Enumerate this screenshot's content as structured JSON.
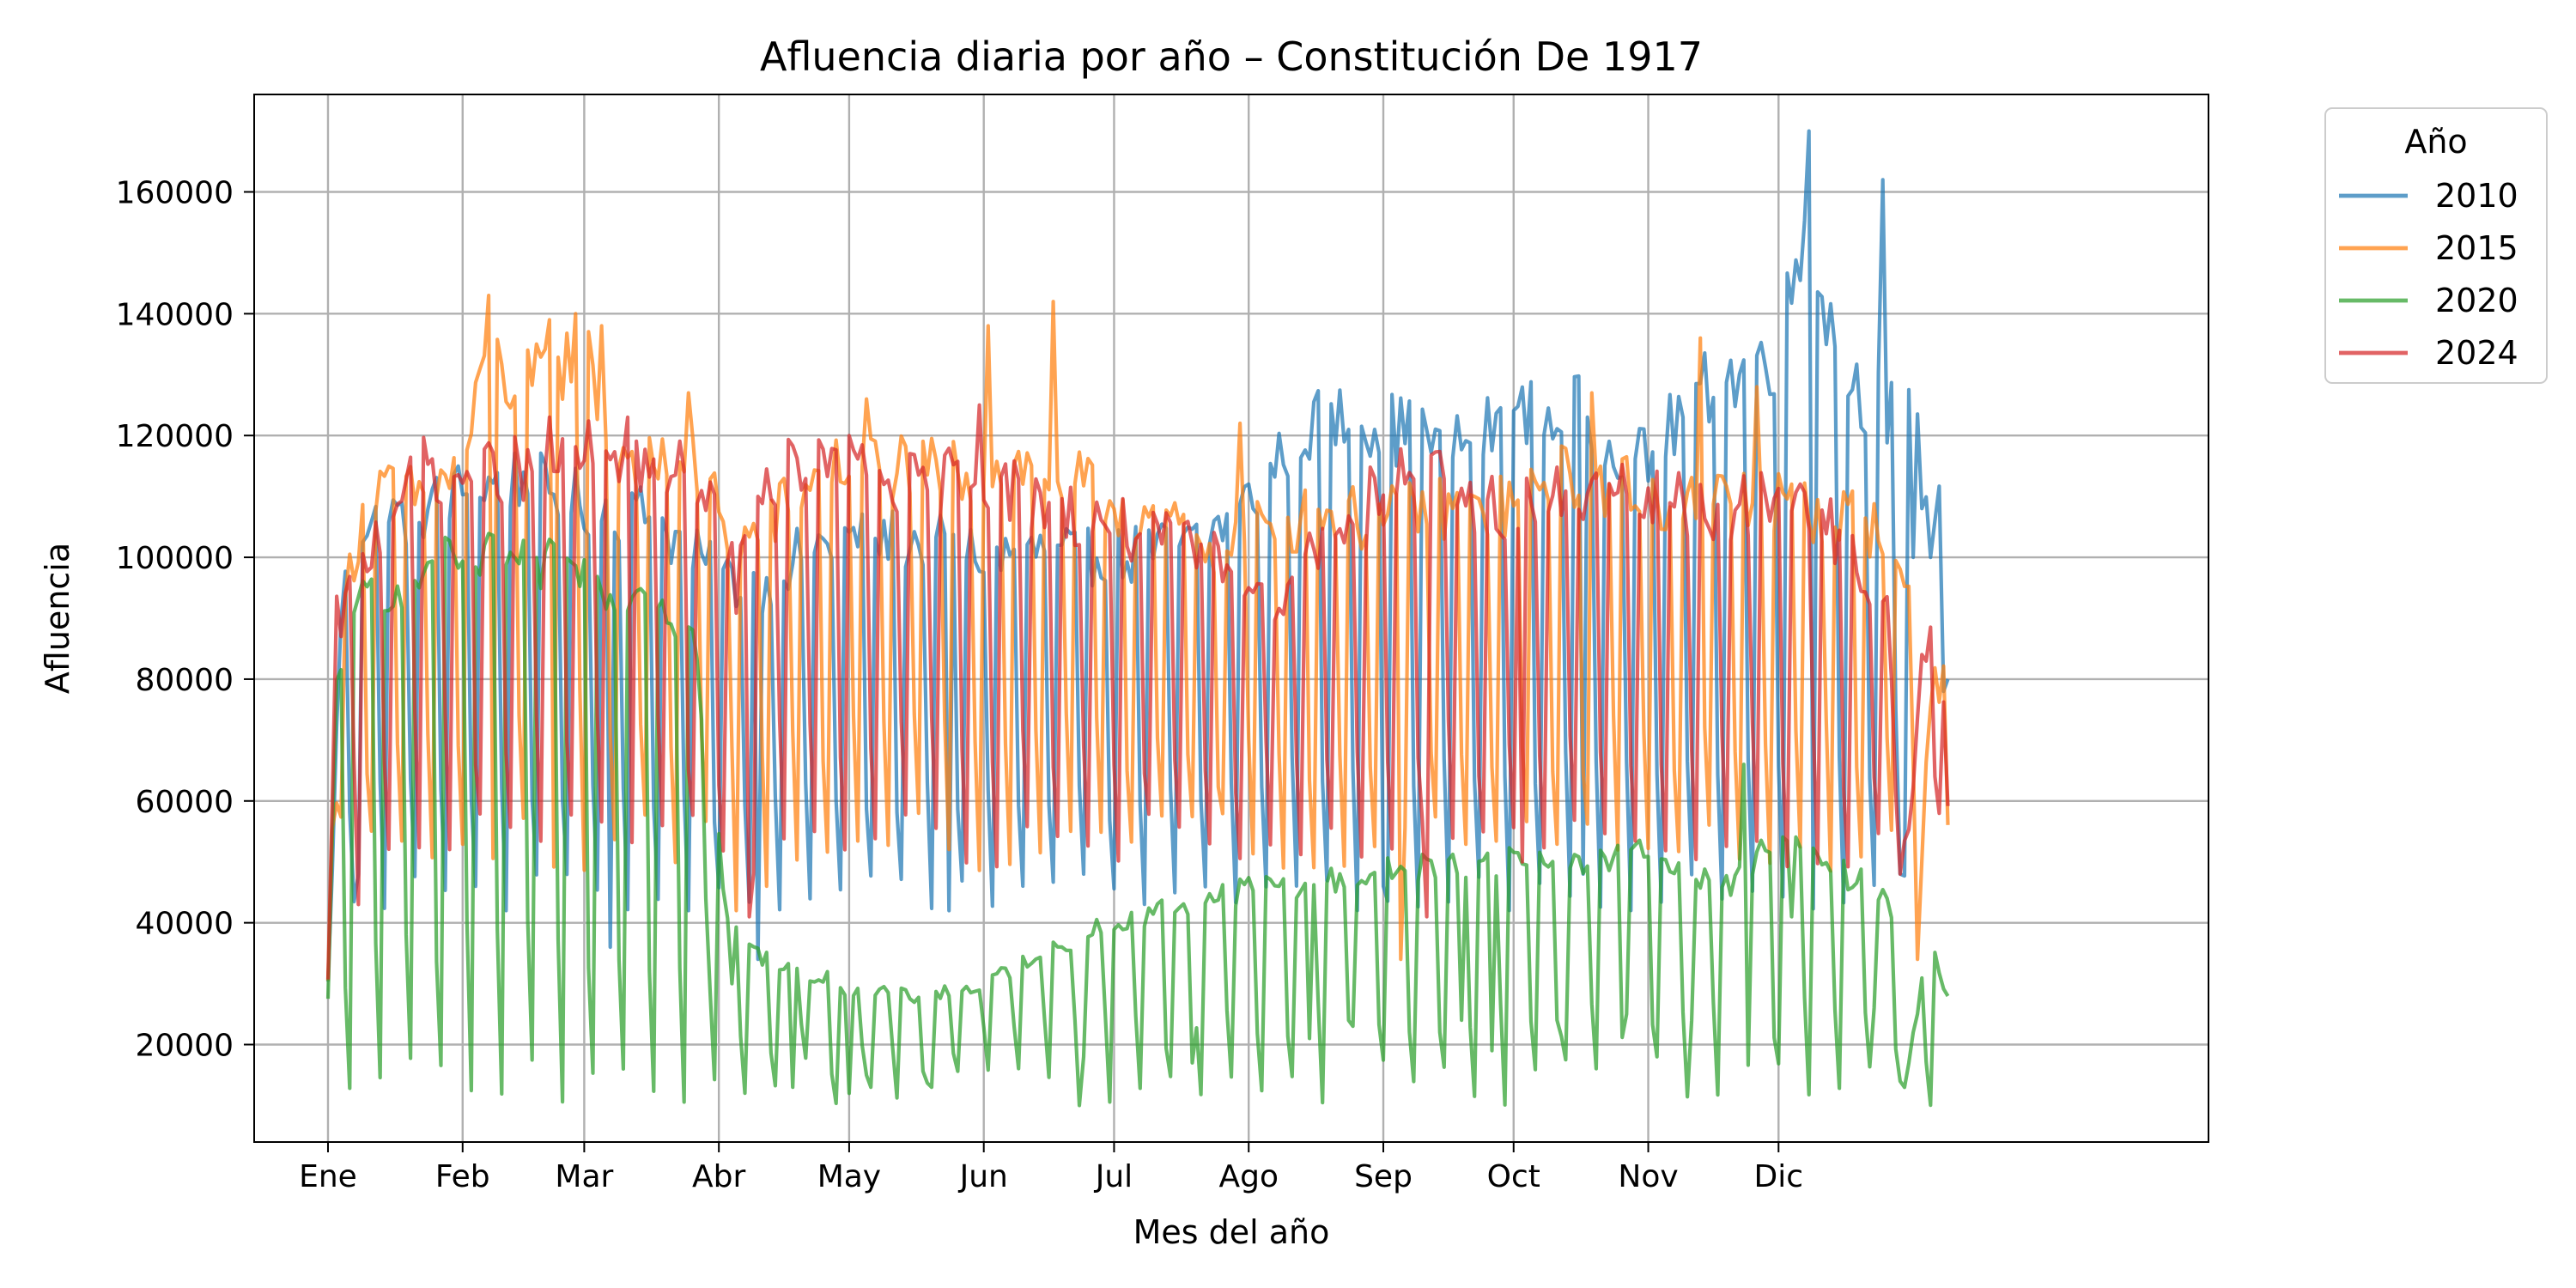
{
  "chart_data": {
    "type": "line",
    "title": "Afluencia diaria por año – Constitución De 1917",
    "xlabel": "Mes del año",
    "ylabel": "Afluencia",
    "xlim": [
      -16,
      434
    ],
    "ylim": [
      4000,
      176000
    ],
    "month_ticks": [
      {
        "label": "Ene",
        "day": 1
      },
      {
        "label": "Feb",
        "day": 32
      },
      {
        "label": "Mar",
        "day": 60
      },
      {
        "label": "Abr",
        "day": 91
      },
      {
        "label": "May",
        "day": 121
      },
      {
        "label": "Jun",
        "day": 152
      },
      {
        "label": "Jul",
        "day": 182
      },
      {
        "label": "Ago",
        "day": 213
      },
      {
        "label": "Sep",
        "day": 244
      },
      {
        "label": "Oct",
        "day": 274
      },
      {
        "label": "Nov",
        "day": 305
      },
      {
        "label": "Dic",
        "day": 335
      }
    ],
    "y_ticks": [
      20000,
      40000,
      60000,
      80000,
      100000,
      120000,
      140000,
      160000
    ],
    "grid": true,
    "legend": {
      "title": "Año",
      "placement": "outside top-right"
    },
    "series": [
      {
        "name": "2010",
        "color": "#1f77b4",
        "anchors": [
          [
            1,
            30000
          ],
          [
            4,
            92000
          ],
          [
            8,
            107000
          ],
          [
            20,
            108000
          ],
          [
            32,
            112000
          ],
          [
            45,
            114000
          ],
          [
            60,
            110000
          ],
          [
            75,
            108000
          ],
          [
            90,
            98000
          ],
          [
            100,
            96000
          ],
          [
            110,
            102000
          ],
          [
            121,
            104000
          ],
          [
            135,
            104000
          ],
          [
            152,
            101000
          ],
          [
            165,
            102000
          ],
          [
            182,
            101000
          ],
          [
            200,
            103000
          ],
          [
            213,
            110000
          ],
          [
            224,
            122000
          ],
          [
            235,
            124000
          ],
          [
            244,
            123000
          ],
          [
            260,
            119000
          ],
          [
            274,
            124000
          ],
          [
            290,
            125000
          ],
          [
            305,
            116000
          ],
          [
            315,
            128000
          ],
          [
            325,
            131000
          ],
          [
            335,
            135000
          ],
          [
            341,
            156000
          ],
          [
            350,
            131000
          ],
          [
            360,
            125000
          ],
          [
            365,
            124000
          ],
          [
            372,
            110000
          ],
          [
            380,
            100000
          ]
        ],
        "weekend_low": [
          42000,
          48000
        ],
        "special": [
          [
            8,
            48000
          ],
          [
            42,
            42000
          ],
          [
            66,
            36000
          ],
          [
            84,
            42000
          ],
          [
            100,
            34000
          ],
          [
            144,
            42000
          ],
          [
            244,
            46000
          ],
          [
            290,
            48000
          ],
          [
            342,
            170000
          ],
          [
            359,
            162000
          ],
          [
            362,
            75000
          ],
          [
            363,
            48000
          ],
          [
            366,
            100000
          ],
          [
            368,
            108000
          ],
          [
            370,
            100000
          ],
          [
            371,
            106000
          ],
          [
            373,
            78000
          ],
          [
            374,
            80000
          ]
        ]
      },
      {
        "name": "2015",
        "color": "#ff7f0e",
        "anchors": [
          [
            1,
            30000
          ],
          [
            3,
            88000
          ],
          [
            10,
            112000
          ],
          [
            20,
            111000
          ],
          [
            32,
            115000
          ],
          [
            38,
            135000
          ],
          [
            45,
            128000
          ],
          [
            52,
            132000
          ],
          [
            60,
            136000
          ],
          [
            66,
            120000
          ],
          [
            75,
            117000
          ],
          [
            88,
            115000
          ],
          [
            95,
            103000
          ],
          [
            100,
            105000
          ],
          [
            110,
            112000
          ],
          [
            121,
            117000
          ],
          [
            135,
            116000
          ],
          [
            150,
            115000
          ],
          [
            160,
            116000
          ],
          [
            175,
            113000
          ],
          [
            182,
            110000
          ],
          [
            195,
            107000
          ],
          [
            205,
            103000
          ],
          [
            213,
            105000
          ],
          [
            230,
            108000
          ],
          [
            244,
            107000
          ],
          [
            255,
            110000
          ],
          [
            265,
            108000
          ],
          [
            274,
            110000
          ],
          [
            285,
            114000
          ],
          [
            300,
            113000
          ],
          [
            310,
            110000
          ],
          [
            320,
            111000
          ],
          [
            335,
            110000
          ],
          [
            350,
            108000
          ],
          [
            360,
            105000
          ],
          [
            365,
            95000
          ],
          [
            367,
            40000
          ],
          [
            370,
            80000
          ],
          [
            374,
            80000
          ]
        ],
        "weekend_low": [
          48000,
          58000
        ],
        "special": [
          [
            38,
            143000
          ],
          [
            52,
            139000
          ],
          [
            58,
            140000
          ],
          [
            64,
            138000
          ],
          [
            84,
            127000
          ],
          [
            125,
            126000
          ],
          [
            153,
            138000
          ],
          [
            168,
            142000
          ],
          [
            211,
            122000
          ],
          [
            292,
            127000
          ],
          [
            317,
            136000
          ],
          [
            248,
            34000
          ],
          [
            330,
            128000
          ],
          [
            367,
            34000
          ],
          [
            102,
            46000
          ],
          [
            95,
            42000
          ]
        ]
      },
      {
        "name": "2020",
        "color": "#2ca02c",
        "anchors": [
          [
            1,
            27000
          ],
          [
            3,
            80000
          ],
          [
            10,
            95000
          ],
          [
            20,
            98000
          ],
          [
            32,
            100000
          ],
          [
            45,
            100000
          ],
          [
            60,
            98000
          ],
          [
            75,
            96000
          ],
          [
            85,
            88000
          ],
          [
            90,
            60000
          ],
          [
            93,
            40000
          ],
          [
            100,
            35000
          ],
          [
            110,
            33000
          ],
          [
            121,
            29000
          ],
          [
            135,
            28000
          ],
          [
            152,
            30000
          ],
          [
            165,
            36000
          ],
          [
            182,
            40000
          ],
          [
            195,
            43000
          ],
          [
            213,
            46000
          ],
          [
            230,
            47000
          ],
          [
            244,
            49000
          ],
          [
            260,
            50000
          ],
          [
            274,
            51000
          ],
          [
            290,
            51000
          ],
          [
            305,
            52000
          ],
          [
            315,
            49000
          ],
          [
            325,
            47000
          ],
          [
            335,
            55000
          ],
          [
            345,
            50000
          ],
          [
            358,
            46000
          ],
          [
            362,
            40000
          ],
          [
            364,
            13000
          ],
          [
            368,
            30000
          ],
          [
            370,
            38000
          ],
          [
            374,
            28000
          ]
        ],
        "weekend_low": [
          10000,
          18000
        ],
        "special": [
          [
            88,
            44000
          ],
          [
            94,
            30000
          ],
          [
            108,
            13000
          ],
          [
            121,
            12000
          ],
          [
            126,
            13000
          ],
          [
            140,
            13000
          ],
          [
            175,
            18000
          ],
          [
            200,
            17000
          ],
          [
            227,
            21000
          ],
          [
            237,
            23000
          ],
          [
            257,
            22000
          ],
          [
            262,
            24000
          ],
          [
            269,
            19000
          ],
          [
            284,
            24000
          ],
          [
            300,
            25000
          ],
          [
            315,
            24000
          ],
          [
            327,
            66000
          ],
          [
            338,
            41000
          ],
          [
            357,
            26000
          ]
        ]
      },
      {
        "name": "2024",
        "color": "#d62728",
        "anchors": [
          [
            1,
            30000
          ],
          [
            3,
            90000
          ],
          [
            8,
            97000
          ],
          [
            15,
            110000
          ],
          [
            22,
            117000
          ],
          [
            32,
            114000
          ],
          [
            40,
            116000
          ],
          [
            50,
            115000
          ],
          [
            58,
            118000
          ],
          [
            66,
            119000
          ],
          [
            75,
            116000
          ],
          [
            85,
            114000
          ],
          [
            92,
            104000
          ],
          [
            95,
            96000
          ],
          [
            100,
            112000
          ],
          [
            110,
            117000
          ],
          [
            121,
            116000
          ],
          [
            135,
            113000
          ],
          [
            150,
            115000
          ],
          [
            165,
            110000
          ],
          [
            182,
            106000
          ],
          [
            200,
            102000
          ],
          [
            213,
            98000
          ],
          [
            220,
            95000
          ],
          [
            228,
            103000
          ],
          [
            244,
            114000
          ],
          [
            255,
            114000
          ],
          [
            265,
            110000
          ],
          [
            274,
            109000
          ],
          [
            290,
            112000
          ],
          [
            305,
            110000
          ],
          [
            320,
            109000
          ],
          [
            335,
            110000
          ],
          [
            345,
            108000
          ],
          [
            355,
            98000
          ],
          [
            360,
            92000
          ],
          [
            364,
            35000
          ],
          [
            368,
            88000
          ],
          [
            372,
            85000
          ],
          [
            374,
            62000
          ]
        ],
        "weekend_low": [
          48000,
          58000
        ],
        "special": [
          [
            8,
            43000
          ],
          [
            52,
            123000
          ],
          [
            70,
            123000
          ],
          [
            151,
            125000
          ],
          [
            240,
            101000
          ],
          [
            254,
            41000
          ],
          [
            98,
            41000
          ],
          [
            276,
            50000
          ]
        ]
      }
    ]
  }
}
